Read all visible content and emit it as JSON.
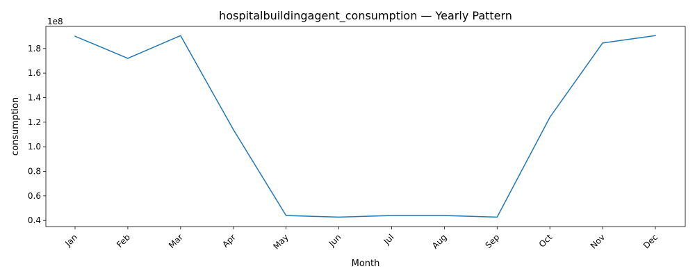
{
  "chart_data": {
    "type": "line",
    "title": "hospitalbuildingagent_consumption — Yearly Pattern",
    "xlabel": "Month",
    "ylabel": "consumption",
    "y_offset_label": "1e8",
    "categories": [
      "Jan",
      "Feb",
      "Mar",
      "Apr",
      "May",
      "Jun",
      "Jul",
      "Aug",
      "Sep",
      "Oct",
      "Nov",
      "Dec"
    ],
    "series": [
      {
        "values": [
          1.9,
          1.72,
          1.905,
          1.14,
          0.44,
          0.427,
          0.44,
          0.44,
          0.427,
          1.24,
          1.845,
          1.905
        ],
        "color": "#1f77b4"
      }
    ],
    "y_ticks": [
      0.4,
      0.6,
      0.8,
      1.0,
      1.2,
      1.4,
      1.6,
      1.8
    ],
    "y_tick_labels": [
      "0.4",
      "0.6",
      "0.8",
      "1.0",
      "1.2",
      "1.4",
      "1.6",
      "1.8"
    ],
    "ylim": [
      0.35,
      1.98
    ],
    "grid": false,
    "legend": "none"
  }
}
